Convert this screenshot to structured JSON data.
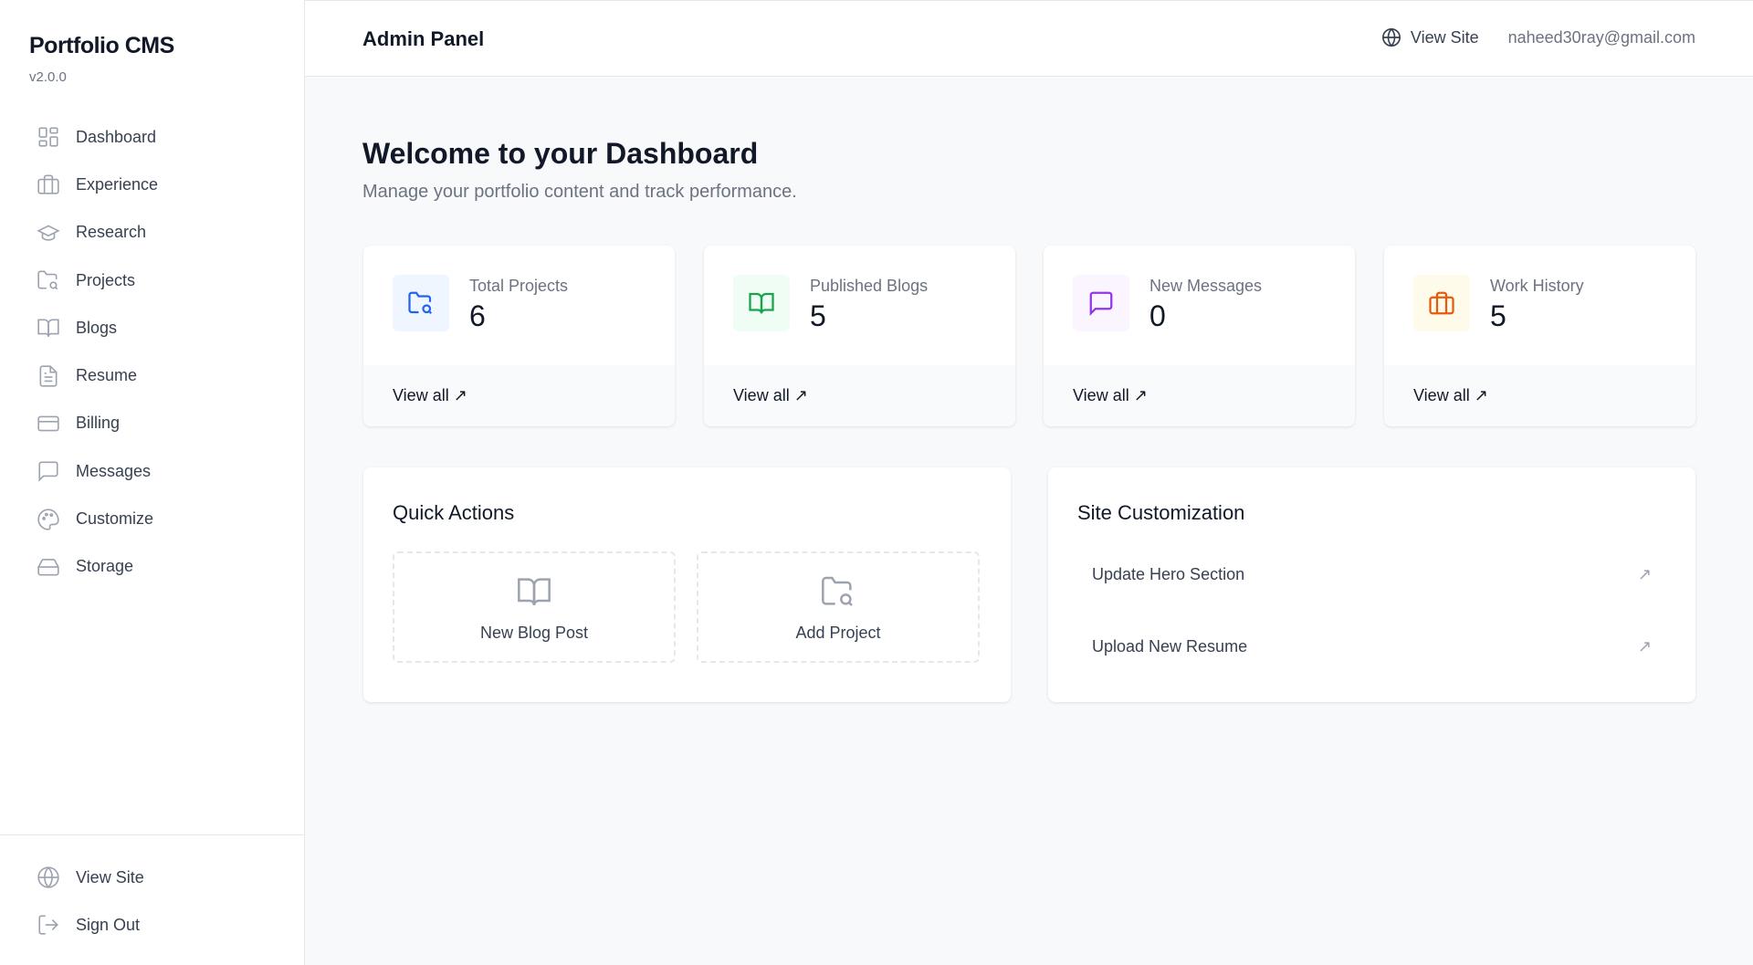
{
  "sidebar": {
    "title": "Portfolio CMS",
    "version": "v2.0.0",
    "items": [
      {
        "label": "Dashboard",
        "icon": "layout-grid-icon"
      },
      {
        "label": "Experience",
        "icon": "briefcase-icon"
      },
      {
        "label": "Research",
        "icon": "graduation-cap-icon"
      },
      {
        "label": "Projects",
        "icon": "folder-search-icon"
      },
      {
        "label": "Blogs",
        "icon": "book-open-icon"
      },
      {
        "label": "Resume",
        "icon": "file-text-icon"
      },
      {
        "label": "Billing",
        "icon": "credit-card-icon"
      },
      {
        "label": "Messages",
        "icon": "message-square-icon"
      },
      {
        "label": "Customize",
        "icon": "palette-icon"
      },
      {
        "label": "Storage",
        "icon": "hard-drive-icon"
      }
    ],
    "bottom": [
      {
        "label": "View Site",
        "icon": "globe-icon"
      },
      {
        "label": "Sign Out",
        "icon": "log-out-icon"
      }
    ]
  },
  "header": {
    "title": "Admin Panel",
    "view_site": "View Site",
    "email": "naheed30ray@gmail.com"
  },
  "main": {
    "title": "Welcome to your Dashboard",
    "subtitle": "Manage your portfolio content and track performance.",
    "stats": [
      {
        "label": "Total Projects",
        "value": "6",
        "link": "View all ↗",
        "color": "#2563eb",
        "bg": "#eff6ff"
      },
      {
        "label": "Published Blogs",
        "value": "5",
        "link": "View all ↗",
        "color": "#16a34a",
        "bg": "#f0fdf4"
      },
      {
        "label": "New Messages",
        "value": "0",
        "link": "View all ↗",
        "color": "#9333ea",
        "bg": "#faf5ff"
      },
      {
        "label": "Work History",
        "value": "5",
        "link": "View all ↗",
        "color": "#ea580c",
        "bg": "#fffbeb"
      }
    ],
    "quick_actions": {
      "title": "Quick Actions",
      "items": [
        "New Blog Post",
        "Add Project"
      ]
    },
    "customization": {
      "title": "Site Customization",
      "items": [
        "Update Hero Section",
        "Upload New Resume"
      ],
      "arrow": "↗"
    }
  }
}
